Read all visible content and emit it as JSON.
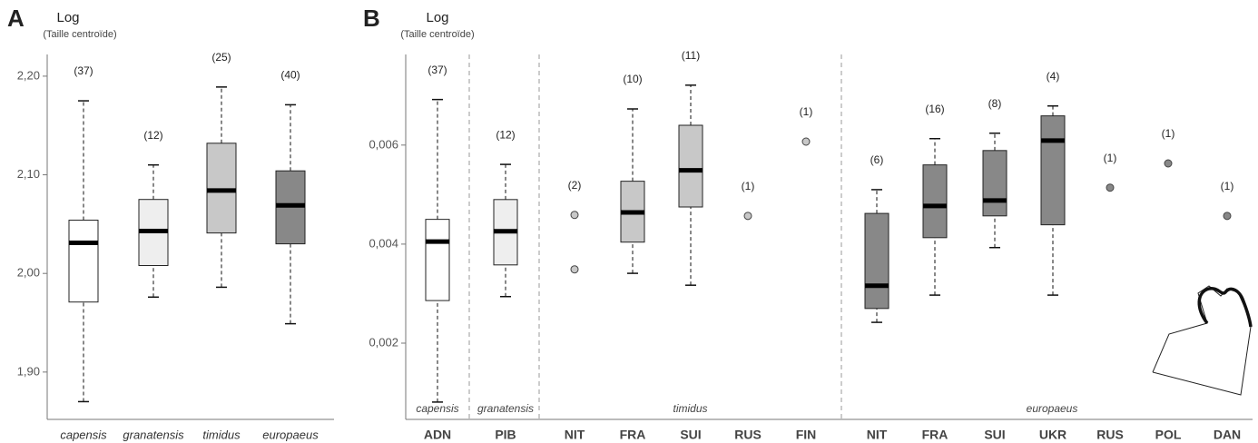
{
  "chart_data": [
    {
      "type": "box",
      "panel": "A",
      "ylabel": "Log",
      "ylabel_sub": "(Taille centroïde)",
      "ylim": [
        1.852,
        2.222
      ],
      "yticks": [
        {
          "value": 1.9,
          "label": "1,90"
        },
        {
          "value": 2.0,
          "label": "2,00"
        },
        {
          "value": 2.1,
          "label": "2,10"
        },
        {
          "value": 2.2,
          "label": "2,20"
        }
      ],
      "items": [
        {
          "label": "capensis",
          "color": "#ffffff",
          "n_label": "(37)",
          "stats": [
            1.87,
            1.971,
            2.031,
            2.054,
            2.175
          ]
        },
        {
          "label": "granatensis",
          "color": "#eeeeee",
          "n_label": "(12)",
          "stats": [
            1.976,
            2.008,
            2.043,
            2.075,
            2.11
          ]
        },
        {
          "label": "timidus",
          "color": "#c8c8c8",
          "n_label": "(25)",
          "stats": [
            1.986,
            2.041,
            2.084,
            2.132,
            2.189
          ]
        },
        {
          "label": "europaeus",
          "color": "#888888",
          "n_label": "(40)",
          "stats": [
            1.949,
            2.03,
            2.069,
            2.104,
            2.171
          ]
        }
      ]
    },
    {
      "type": "box",
      "panel": "B",
      "ylabel": "Log",
      "ylabel_sub": "(Taille centroïde)",
      "ylim": [
        0.00046,
        0.00783
      ],
      "yticks": [
        {
          "value": 0.002,
          "label": "0,002"
        },
        {
          "value": 0.004,
          "label": "0,004"
        },
        {
          "value": 0.006,
          "label": "0,006"
        }
      ],
      "groups": [
        {
          "name": "capensis",
          "color": "#ffffff",
          "items": [
            {
              "label": "ADN",
              "n_label": "(37)",
              "stats": [
                0.00081,
                0.00286,
                0.00405,
                0.0045,
                0.00692
              ]
            }
          ]
        },
        {
          "name": "granatensis",
          "color": "#eeeeee",
          "items": [
            {
              "label": "PIB",
              "n_label": "(12)",
              "stats": [
                0.00294,
                0.00358,
                0.00426,
                0.0049,
                0.00561
              ]
            }
          ]
        },
        {
          "name": "timidus",
          "color": "#c8c8c8",
          "items": [
            {
              "label": "NIT",
              "n_label": "(2)",
              "points": [
                0.00459,
                0.00349
              ]
            },
            {
              "label": "FRA",
              "n_label": "(10)",
              "stats": [
                0.00341,
                0.00404,
                0.00464,
                0.00527,
                0.00673
              ]
            },
            {
              "label": "SUI",
              "n_label": "(11)",
              "stats": [
                0.00317,
                0.00475,
                0.00549,
                0.0064,
                0.00721
              ]
            },
            {
              "label": "RUS",
              "n_label": "(1)",
              "points": [
                0.00457
              ]
            },
            {
              "label": "FIN",
              "n_label": "(1)",
              "points": [
                0.00607
              ]
            }
          ]
        },
        {
          "name": "europaeus",
          "color": "#888888",
          "items": [
            {
              "label": "NIT",
              "n_label": "(6)",
              "stats": [
                0.00242,
                0.0027,
                0.00316,
                0.00462,
                0.0051
              ]
            },
            {
              "label": "FRA",
              "n_label": "(16)",
              "stats": [
                0.00297,
                0.00413,
                0.00477,
                0.0056,
                0.00613
              ]
            },
            {
              "label": "SUI",
              "n_label": "(8)",
              "stats": [
                0.00393,
                0.00457,
                0.00488,
                0.00589,
                0.00624
              ]
            },
            {
              "label": "UKR",
              "n_label": "(4)",
              "stats": [
                0.00297,
                0.00439,
                0.00609,
                0.00659,
                0.00679
              ]
            },
            {
              "label": "RUS",
              "n_label": "(1)",
              "points": [
                0.00514
              ]
            },
            {
              "label": "POL",
              "n_label": "(1)",
              "points": [
                0.00563
              ]
            },
            {
              "label": "DAN",
              "n_label": "(1)",
              "points": [
                0.00457
              ]
            }
          ]
        }
      ]
    }
  ]
}
